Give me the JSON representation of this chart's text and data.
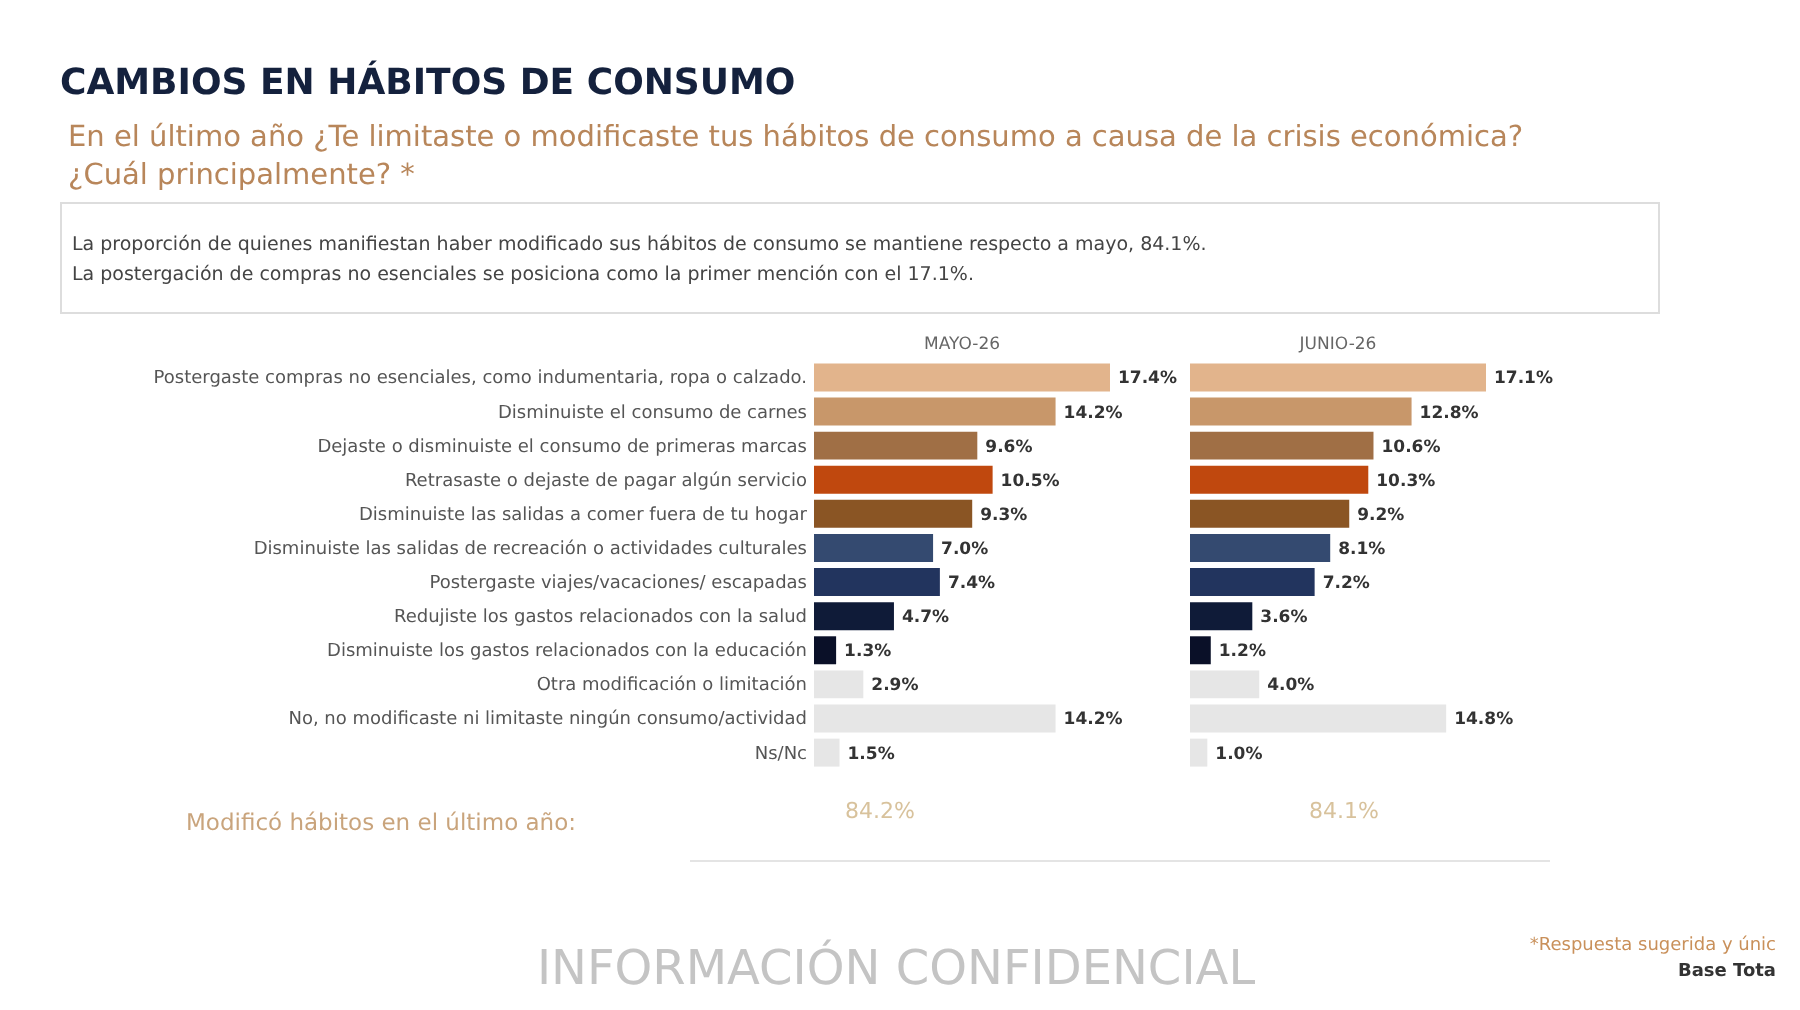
{
  "chart_data": [
    {
      "type": "bar",
      "orientation": "horizontal",
      "title": "CAMBIOS EN HÁBITOS DE CONSUMO",
      "subtitle": "En el último año ¿Te limitaste o modificaste tus hábitos de consumo a causa de la crisis económica? ¿Cuál principalmente? *",
      "categories": [
        "Postergaste compras no esenciales, como indumentaria, ropa o calzado.",
        "Disminuiste el consumo de carnes",
        "Dejaste o disminuiste el consumo de primeras marcas",
        "Retrasaste o dejaste de pagar algún servicio",
        "Disminuiste las salidas a comer fuera de tu hogar",
        "Disminuiste las salidas de recreación o actividades culturales",
        "Postergaste viajes/vacaciones/ escapadas",
        "Redujiste los gastos relacionados con la salud",
        "Disminuiste los gastos relacionados con la educación",
        "Otra modificación o limitación",
        "No, no modificaste ni limitaste ningún consumo/actividad",
        "Ns/Nc"
      ],
      "series": [
        {
          "name": "MAYO-26",
          "values": [
            17.4,
            14.2,
            9.6,
            10.5,
            9.3,
            7.0,
            7.4,
            4.7,
            1.3,
            2.9,
            14.2,
            1.5
          ],
          "value_labels": [
            "17.4%",
            "14.2%",
            "9.6%",
            "10.5%",
            "9.3%",
            "7.0%",
            "7.4%",
            "4.7%",
            "1.3%",
            "2.9%",
            "14.2%",
            "1.5%"
          ]
        }
      ],
      "colors": [
        "#e2b48c",
        "#c8976a",
        "#a06f45",
        "#c0480e",
        "#8a5524",
        "#344a70",
        "#22345e",
        "#0f1b38",
        "#0a1028",
        "#e6e6e6",
        "#e6e6e6",
        "#e6e6e6"
      ],
      "annotations": [
        "La proporción de quienes manifiestan haber modificado sus hábitos de consumo se mantiene respecto a mayo, 84.1%.",
        "La postergación de compras no esenciales se posiciona como la primer mención con el 17.1%.",
        "Modificó hábitos en el último año:",
        "84.2%",
        "INFORMACIÓN CONFIDENCIAL",
        "*Respuesta sugerida y únic",
        "Base Tota"
      ]
    },
    {
      "type": "bar",
      "orientation": "horizontal",
      "tick_labels": false,
      "categories": [
        null,
        null,
        null,
        null,
        null,
        null,
        null,
        null,
        null,
        null,
        null,
        null
      ],
      "series": [
        {
          "name": "JUNIO-26",
          "values": [
            17.1,
            12.8,
            10.6,
            10.3,
            9.2,
            8.1,
            7.2,
            3.6,
            1.2,
            4.0,
            14.8,
            1.0
          ],
          "value_labels": [
            "17.1%",
            "12.8%",
            "10.6%",
            "10.3%",
            "9.2%",
            "8.1%",
            "7.2%",
            "3.6%",
            "1.2%",
            "4.0%",
            "14.8%",
            "1.0%"
          ]
        }
      ],
      "colors": [
        "#e2b48c",
        "#c8976a",
        "#a06f45",
        "#c0480e",
        "#8a5524",
        "#344a70",
        "#22345e",
        "#0f1b38",
        "#0a1028",
        "#e6e6e6",
        "#e6e6e6",
        "#e6e6e6"
      ],
      "annotations": [
        "84.1%"
      ]
    }
  ]
}
